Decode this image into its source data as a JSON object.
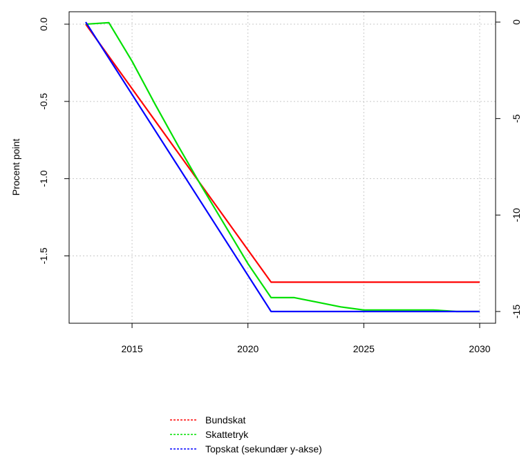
{
  "chart_data": {
    "type": "line",
    "title": "",
    "xlabel": "",
    "ylabel": "Procent point",
    "ylabel_right": "",
    "xlim": [
      2013,
      2030
    ],
    "ylim": [
      -1.86,
      0.0
    ],
    "y2lim": [
      -15,
      0
    ],
    "x_ticks": [
      2015,
      2020,
      2025,
      2030
    ],
    "y_ticks": [
      0.0,
      -0.5,
      -1.0,
      -1.5
    ],
    "y_tick_labels": [
      "0.0",
      "-0.5",
      "-1.0",
      "-1.5"
    ],
    "y2_ticks": [
      0,
      -5,
      -10,
      -15
    ],
    "y2_tick_labels": [
      "0",
      "-5",
      "-10",
      "-15"
    ],
    "grid": true,
    "legend_position": "bottom",
    "series": [
      {
        "name": "Bundskat",
        "color": "#ff0000",
        "axis": "left",
        "x": [
          2013,
          2021,
          2022,
          2023,
          2024,
          2025,
          2026,
          2027,
          2028,
          2029,
          2030
        ],
        "y": [
          0.0,
          -1.67,
          -1.67,
          -1.67,
          -1.67,
          -1.67,
          -1.67,
          -1.67,
          -1.67,
          -1.67,
          -1.67
        ]
      },
      {
        "name": "Skattetryk",
        "color": "#00e000",
        "axis": "left",
        "x": [
          2013,
          2014,
          2015,
          2016,
          2017,
          2018,
          2019,
          2020,
          2021,
          2022,
          2023,
          2024,
          2025,
          2026,
          2027,
          2028,
          2029,
          2030
        ],
        "y": [
          0.0,
          0.01,
          -0.24,
          -0.52,
          -0.79,
          -1.05,
          -1.3,
          -1.55,
          -1.77,
          -1.77,
          -1.8,
          -1.83,
          -1.85,
          -1.85,
          -1.85,
          -1.85,
          -1.86,
          -1.86
        ]
      },
      {
        "name": "Topskat (sekundær y-akse)",
        "color": "#0000ff",
        "axis": "right",
        "x": [
          2013,
          2021,
          2022,
          2023,
          2024,
          2025,
          2026,
          2027,
          2028,
          2029,
          2030
        ],
        "y": [
          0,
          -15,
          -15,
          -15,
          -15,
          -15,
          -15,
          -15,
          -15,
          -15,
          -15
        ]
      }
    ]
  }
}
